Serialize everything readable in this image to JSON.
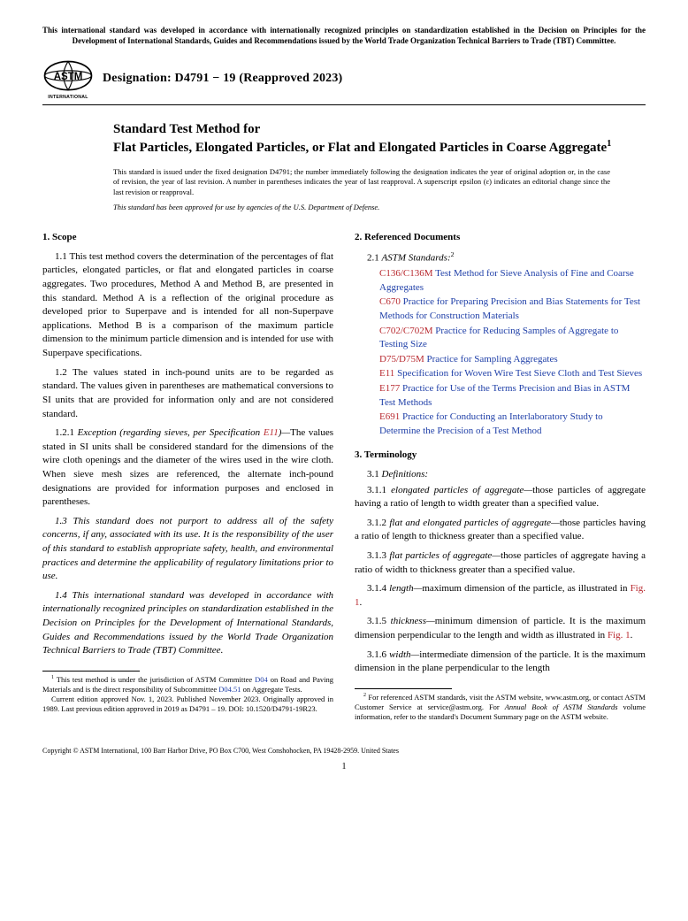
{
  "tbt_notice": "This international standard was developed in accordance with internationally recognized principles on standardization established in the Decision on Principles for the Development of International Standards, Guides and Recommendations issued by the World Trade Organization Technical Barriers to Trade (TBT) Committee.",
  "logo_text_top": "ASTM",
  "logo_text_bottom": "INTERNATIONAL",
  "designation": "Designation: D4791 − 19 (Reapproved 2023)",
  "title_lead": "Standard Test Method for",
  "title_main": "Flat Particles, Elongated Particles, or Flat and Elongated Particles in Coarse Aggregate",
  "title_sup": "1",
  "issuance": "This standard is issued under the fixed designation D4791; the number immediately following the designation indicates the year of original adoption or, in the case of revision, the year of last revision. A number in parentheses indicates the year of last reapproval. A superscript epsilon (ε) indicates an editorial change since the last revision or reapproval.",
  "dod_notice": "This standard has been approved for use by agencies of the U.S. Department of Defense.",
  "scope_head": "1. Scope",
  "scope_1_1": "1.1 This test method covers the determination of the percentages of flat particles, elongated particles, or flat and elongated particles in coarse aggregates. Two procedures, Method A and Method B, are presented in this standard. Method A is a reflection of the original procedure as developed prior to Superpave and is intended for all non-Superpave applications. Method B is a comparison of the maximum particle dimension to the minimum particle dimension and is intended for use with Superpave specifications.",
  "scope_1_2": "1.2 The values stated in inch-pound units are to be regarded as standard. The values given in parentheses are mathematical conversions to SI units that are provided for information only and are not considered standard.",
  "scope_1_2_1_lead": "1.2.1 ",
  "scope_1_2_1_it": "Exception (regarding sieves, per Specification ",
  "scope_1_2_1_link": "E11",
  "scope_1_2_1_close": ")—",
  "scope_1_2_1_body": "The values stated in SI units shall be considered standard for the dimensions of the wire cloth openings and the diameter of the wires used in the wire cloth. When sieve mesh sizes are referenced, the alternate inch-pound designations are provided for information purposes and enclosed in parentheses.",
  "scope_1_3": "1.3 This standard does not purport to address all of the safety concerns, if any, associated with its use. It is the responsibility of the user of this standard to establish appropriate safety, health, and environmental practices and determine the applicability of regulatory limitations prior to use.",
  "scope_1_4": "1.4 This international standard was developed in accordance with internationally recognized principles on standardization established in the Decision on Principles for the Development of International Standards, Guides and Recommendations issued by the World Trade Organization Technical Barriers to Trade (TBT) Committee.",
  "refs_head": "2. Referenced Documents",
  "refs_lead_num": "2.1 ",
  "refs_lead_it": "ASTM Standards:",
  "refs_sup": "2",
  "refs": [
    {
      "code": "C136/C136M",
      "desc": " Test Method for Sieve Analysis of Fine and Coarse Aggregates"
    },
    {
      "code": "C670",
      "desc": " Practice for Preparing Precision and Bias Statements for Test Methods for Construction Materials"
    },
    {
      "code": "C702/C702M",
      "desc": " Practice for Reducing Samples of Aggregate to Testing Size"
    },
    {
      "code": "D75/D75M",
      "desc": " Practice for Sampling Aggregates"
    },
    {
      "code": "E11",
      "desc": " Specification for Woven Wire Test Sieve Cloth and Test Sieves"
    },
    {
      "code": "E177",
      "desc": " Practice for Use of the Terms Precision and Bias in ASTM Test Methods"
    },
    {
      "code": "E691",
      "desc": " Practice for Conducting an Interlaboratory Study to Determine the Precision of a Test Method"
    }
  ],
  "term_head": "3. Terminology",
  "term_lead_num": "3.1 ",
  "term_lead_it": "Definitions:",
  "term_3_1_1_n": "3.1.1 ",
  "term_3_1_1_t": "elongated particles of aggregate—",
  "term_3_1_1_b": "those particles of aggregate having a ratio of length to width greater than a specified value.",
  "term_3_1_2_n": "3.1.2 ",
  "term_3_1_2_t": "flat and elongated particles of aggregate—",
  "term_3_1_2_b": "those particles having a ratio of length to thickness greater than a specified value.",
  "term_3_1_3_n": "3.1.3 ",
  "term_3_1_3_t": "flat particles of aggregate—",
  "term_3_1_3_b": "those particles of aggregate having a ratio of width to thickness greater than a specified value.",
  "term_3_1_4_n": "3.1.4 ",
  "term_3_1_4_t": "length—",
  "term_3_1_4_b": "maximum dimension of the particle, as illustrated in ",
  "term_3_1_4_fig": "Fig. 1",
  "term_3_1_4_e": ".",
  "term_3_1_5_n": "3.1.5 ",
  "term_3_1_5_t": "thickness—",
  "term_3_1_5_b": "minimum dimension of particle. It is the maximum dimension perpendicular to the length and width as illustrated in ",
  "term_3_1_5_fig": "Fig. 1",
  "term_3_1_5_e": ".",
  "term_3_1_6_n": "3.1.6 ",
  "term_3_1_6_t": "width—",
  "term_3_1_6_b": "intermediate dimension of the particle. It is the maximum dimension in the plane perpendicular to the length",
  "fn1_a": " This test method is under the jurisdiction of ASTM Committee ",
  "fn1_l1": "D04",
  "fn1_b": " on Road and Paving Materials and is the direct responsibility of Subcommittee ",
  "fn1_l2": "D04.51",
  "fn1_c": " on Aggregate Tests.",
  "fn1_p2": "Current edition approved Nov. 1, 2023. Published November 2023. Originally approved in 1989. Last previous edition approved in 2019 as D4791 – 19. DOI: 10.1520/D4791-19R23.",
  "fn2_a": " For referenced ASTM standards, visit the ASTM website, www.astm.org, or contact ASTM Customer Service at service@astm.org. For ",
  "fn2_it": "Annual Book of ASTM Standards",
  "fn2_b": " volume information, refer to the standard's Document Summary page on the ASTM website.",
  "copyright": "Copyright © ASTM International, 100 Barr Harbor Drive, PO Box C700, West Conshohocken, PA 19428-2959. United States",
  "pageno": "1"
}
